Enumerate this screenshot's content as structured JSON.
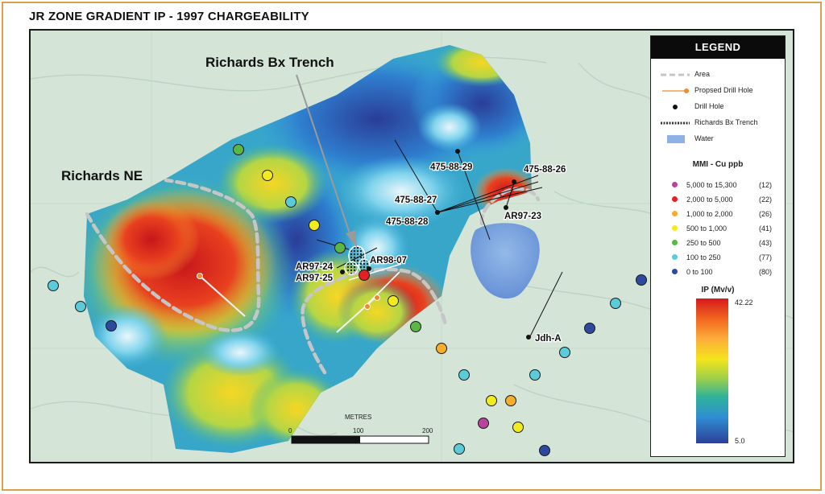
{
  "title": "JR ZONE GRADIENT IP - 1997 CHARGEABILITY",
  "map_labels": {
    "richards_bx_trench": "Richards Bx Trench",
    "richards_ne": "Richards NE",
    "holes": [
      "475-88-29",
      "475-88-26",
      "475-88-27",
      "475-88-28",
      "AR97-23",
      "AR97-24",
      "AR98-07",
      "AR97-25",
      "Jdh-A"
    ]
  },
  "scale_bar": {
    "title": "METRES",
    "ticks": [
      "0",
      "100",
      "200"
    ]
  },
  "legend": {
    "header": "LEGEND",
    "items": [
      {
        "label": "Area"
      },
      {
        "label": "Propsed Drill Hole"
      },
      {
        "label": "Drill Hole"
      },
      {
        "label": "Richards Bx Trench"
      },
      {
        "label": "Water"
      }
    ],
    "mmi_title": "MMI - Cu ppb",
    "mmi": [
      {
        "range": "5,000 to 15,300",
        "count": "(12)",
        "color": "#b8449a"
      },
      {
        "range": "2,000 to 5,000",
        "count": "(22)",
        "color": "#e41f26"
      },
      {
        "range": "1,000 to 2,000",
        "count": "(26)",
        "color": "#f6ad2b"
      },
      {
        "range": "500   to 1,000",
        "count": "(41)",
        "color": "#f2ec1e"
      },
      {
        "range": "250   to 500",
        "count": "(43)",
        "color": "#5ab744"
      },
      {
        "range": "100   to 250",
        "count": "(77)",
        "color": "#5ccbd9"
      },
      {
        "range": "0      to 100",
        "count": "(80)",
        "color": "#2e4a9e"
      }
    ],
    "ip_title": "IP (Mv/v)",
    "ip_max": "42.22",
    "ip_min": "5.0"
  },
  "colors": {
    "frame": "#d8a24a",
    "proposed_hole": "#f08a2c",
    "area_line": "#c9c9c9",
    "water": "#6f9bdc"
  }
}
